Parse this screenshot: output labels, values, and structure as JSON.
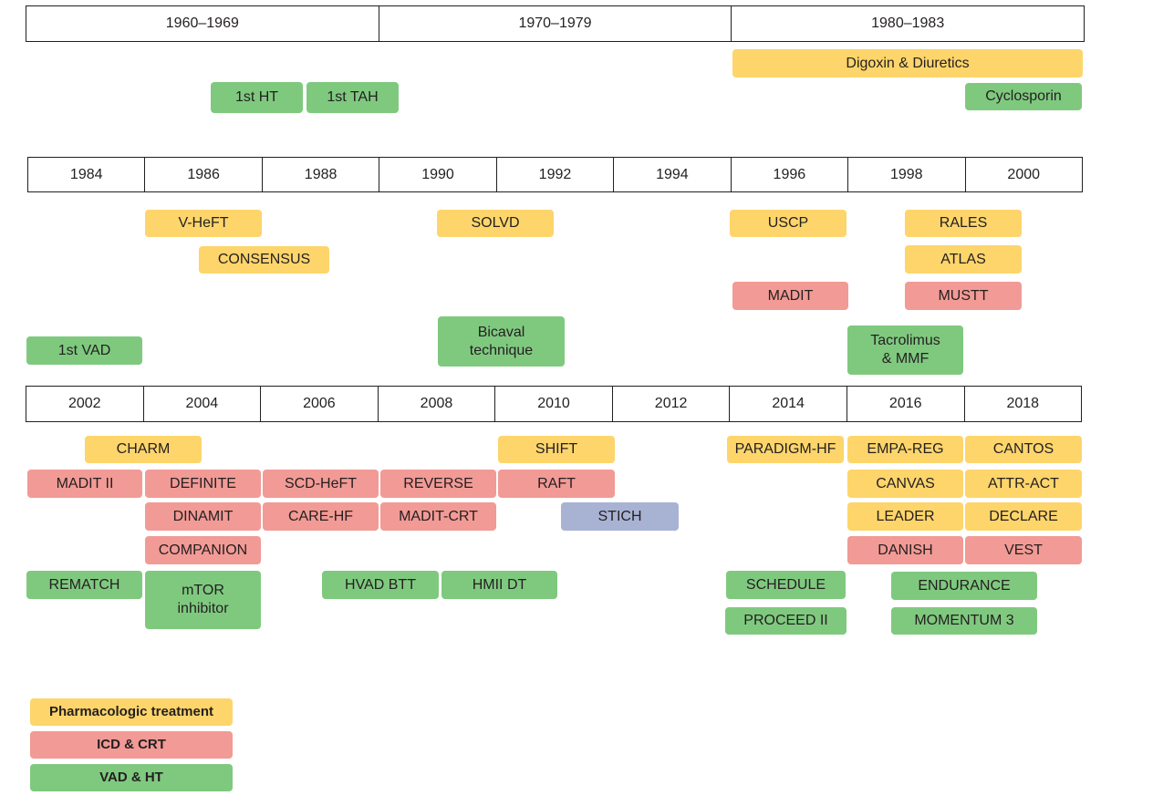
{
  "colors": {
    "pharmacologic": "#fdd56b",
    "icd_crt": "#f29a95",
    "vad_ht": "#7fc97f",
    "other": "#a8b2d3"
  },
  "rows": [
    {
      "periods": [
        "1960–1969",
        "1970–1979",
        "1980–1983"
      ]
    },
    {
      "periods": [
        "1984",
        "1986",
        "1988",
        "1990",
        "1992",
        "1994",
        "1996",
        "1998",
        "2000"
      ]
    },
    {
      "periods": [
        "2002",
        "2004",
        "2006",
        "2008",
        "2010",
        "2012",
        "2014",
        "2016",
        "2018"
      ]
    }
  ],
  "events": [
    {
      "label": "Digoxin & Diuretics",
      "category": "pharmacologic"
    },
    {
      "label": "1st HT",
      "category": "vad_ht"
    },
    {
      "label": "1st TAH",
      "category": "vad_ht"
    },
    {
      "label": "Cyclosporin",
      "category": "vad_ht"
    },
    {
      "label": "V-HeFT",
      "category": "pharmacologic"
    },
    {
      "label": "SOLVD",
      "category": "pharmacologic"
    },
    {
      "label": "USCP",
      "category": "pharmacologic"
    },
    {
      "label": "RALES",
      "category": "pharmacologic"
    },
    {
      "label": "CONSENSUS",
      "category": "pharmacologic"
    },
    {
      "label": "ATLAS",
      "category": "pharmacologic"
    },
    {
      "label": "MADIT",
      "category": "icd_crt"
    },
    {
      "label": "MUSTT",
      "category": "icd_crt"
    },
    {
      "label": "Bicaval\ntechnique",
      "category": "vad_ht"
    },
    {
      "label": "1st VAD",
      "category": "vad_ht"
    },
    {
      "label": "Tacrolimus\n& MMF",
      "category": "vad_ht"
    },
    {
      "label": "CHARM",
      "category": "pharmacologic"
    },
    {
      "label": "SHIFT",
      "category": "pharmacologic"
    },
    {
      "label": "PARADIGM-HF",
      "category": "pharmacologic"
    },
    {
      "label": "EMPA-REG",
      "category": "pharmacologic"
    },
    {
      "label": "CANTOS",
      "category": "pharmacologic"
    },
    {
      "label": "MADIT II",
      "category": "icd_crt"
    },
    {
      "label": "DEFINITE",
      "category": "icd_crt"
    },
    {
      "label": "SCD-HeFT",
      "category": "icd_crt"
    },
    {
      "label": "REVERSE",
      "category": "icd_crt"
    },
    {
      "label": "RAFT",
      "category": "icd_crt"
    },
    {
      "label": "CANVAS",
      "category": "pharmacologic"
    },
    {
      "label": "ATTR-ACT",
      "category": "pharmacologic"
    },
    {
      "label": "DINAMIT",
      "category": "icd_crt"
    },
    {
      "label": "CARE-HF",
      "category": "icd_crt"
    },
    {
      "label": "MADIT-CRT",
      "category": "icd_crt"
    },
    {
      "label": "STICH",
      "category": "other"
    },
    {
      "label": "LEADER",
      "category": "pharmacologic"
    },
    {
      "label": "DECLARE",
      "category": "pharmacologic"
    },
    {
      "label": "COMPANION",
      "category": "icd_crt"
    },
    {
      "label": "DANISH",
      "category": "icd_crt"
    },
    {
      "label": "VEST",
      "category": "icd_crt"
    },
    {
      "label": "REMATCH",
      "category": "vad_ht"
    },
    {
      "label": "mTOR\ninhibitor",
      "category": "vad_ht"
    },
    {
      "label": "HVAD BTT",
      "category": "vad_ht"
    },
    {
      "label": "HMII DT",
      "category": "vad_ht"
    },
    {
      "label": "SCHEDULE",
      "category": "vad_ht"
    },
    {
      "label": "ENDURANCE",
      "category": "vad_ht"
    },
    {
      "label": "PROCEED II",
      "category": "vad_ht"
    },
    {
      "label": "MOMENTUM 3",
      "category": "vad_ht"
    }
  ],
  "legend": [
    {
      "label": "Pharmacologic treatment",
      "category": "pharmacologic"
    },
    {
      "label": "ICD & CRT",
      "category": "icd_crt"
    },
    {
      "label": "VAD & HT",
      "category": "vad_ht"
    }
  ]
}
